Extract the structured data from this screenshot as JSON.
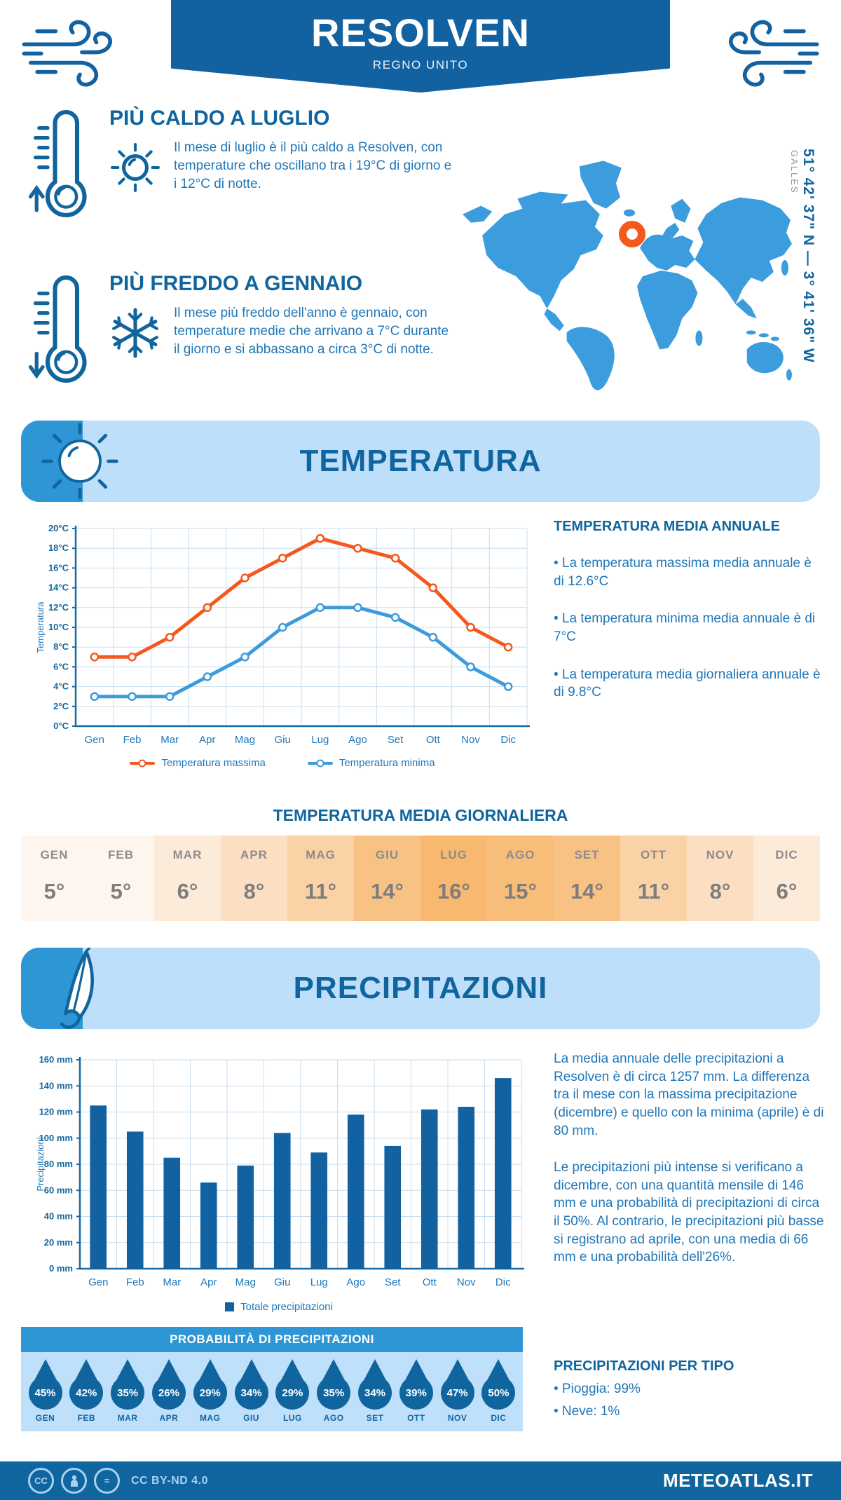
{
  "header": {
    "title": "RESOLVEN",
    "subtitle": "REGNO UNITO"
  },
  "highlights": {
    "warm": {
      "title": "PIÙ CALDO A LUGLIO",
      "text": "Il mese di luglio è il più caldo a Resolven, con temperature che oscillano tra i 19°C di giorno e i 12°C di notte."
    },
    "cold": {
      "title": "PIÙ FREDDO A GENNAIO",
      "text": "Il mese più freddo dell'anno è gennaio, con temperature medie che arrivano a 7°C durante il giorno e si abbassano a circa 3°C di notte."
    }
  },
  "map": {
    "coordinates": "51° 42' 37\" N — 3° 41' 36\" W",
    "region": "GALLES"
  },
  "temperature": {
    "banner": "TEMPERATURA",
    "annual_heading": "TEMPERATURA MEDIA ANNUALE",
    "annual_bullets": [
      "• La temperatura massima media annuale è di 12.6°C",
      "• La temperatura minima media annuale è di 7°C",
      "• La temperatura media giornaliera annuale è di 9.8°C"
    ],
    "daily_heading": "TEMPERATURA MEDIA GIORNALIERA",
    "daily": [
      {
        "label": "GEN",
        "value": "5°",
        "bg": "#FEF6EE"
      },
      {
        "label": "FEB",
        "value": "5°",
        "bg": "#FEF6EE"
      },
      {
        "label": "MAR",
        "value": "6°",
        "bg": "#FDEBD9"
      },
      {
        "label": "APR",
        "value": "8°",
        "bg": "#FCDFC2"
      },
      {
        "label": "MAG",
        "value": "11°",
        "bg": "#FBD2A5"
      },
      {
        "label": "GIU",
        "value": "14°",
        "bg": "#F9C285"
      },
      {
        "label": "LUG",
        "value": "16°",
        "bg": "#F8B86F"
      },
      {
        "label": "AGO",
        "value": "15°",
        "bg": "#F9BD7A"
      },
      {
        "label": "SET",
        "value": "14°",
        "bg": "#F9C285"
      },
      {
        "label": "OTT",
        "value": "11°",
        "bg": "#FBD2A5"
      },
      {
        "label": "NOV",
        "value": "8°",
        "bg": "#FCDFC2"
      },
      {
        "label": "DIC",
        "value": "6°",
        "bg": "#FDEBD9"
      }
    ]
  },
  "precipitation": {
    "banner": "PRECIPITAZIONI",
    "paragraph1": "La media annuale delle precipitazioni a Resolven è di circa 1257 mm. La differenza tra il mese con la massima precipitazione (dicembre) e quello con la minima (aprile) è di 80 mm.",
    "paragraph2": "Le precipitazioni più intense si verificano a dicembre, con una quantità mensile di 146 mm e una probabilità di precipitazioni di circa il 50%. Al contrario, le precipitazioni più basse si registrano ad aprile, con una media di 66 mm e una probabilità dell'26%.",
    "probability_heading": "PROBABILITÀ DI PRECIPITAZIONI",
    "probability": [
      {
        "month": "GEN",
        "value": "45%"
      },
      {
        "month": "FEB",
        "value": "42%"
      },
      {
        "month": "MAR",
        "value": "35%"
      },
      {
        "month": "APR",
        "value": "26%"
      },
      {
        "month": "MAG",
        "value": "29%"
      },
      {
        "month": "GIU",
        "value": "34%"
      },
      {
        "month": "LUG",
        "value": "29%"
      },
      {
        "month": "AGO",
        "value": "35%"
      },
      {
        "month": "SET",
        "value": "34%"
      },
      {
        "month": "OTT",
        "value": "39%"
      },
      {
        "month": "NOV",
        "value": "47%"
      },
      {
        "month": "DIC",
        "value": "50%"
      }
    ],
    "per_type_heading": "PRECIPITAZIONI PER TIPO",
    "per_type": [
      "• Pioggia: 99%",
      "• Neve: 1%"
    ]
  },
  "chart_data": [
    {
      "type": "line",
      "categories": [
        "Gen",
        "Feb",
        "Mar",
        "Apr",
        "Mag",
        "Giu",
        "Lug",
        "Ago",
        "Set",
        "Ott",
        "Nov",
        "Dic"
      ],
      "series": [
        {
          "name": "Temperatura massima",
          "color": "#F4581C",
          "values": [
            7,
            7,
            9,
            12,
            15,
            17,
            19,
            18,
            17,
            14,
            10,
            8
          ]
        },
        {
          "name": "Temperatura minima",
          "color": "#3D9BDC",
          "values": [
            3,
            3,
            3,
            5,
            7,
            10,
            12,
            12,
            11,
            9,
            6,
            4
          ]
        }
      ],
      "ylabel": "Temperatura",
      "ylim": [
        0,
        20
      ],
      "ytick_step": 2,
      "ytick_suffix": "°C",
      "grid": true,
      "legend_position": "bottom"
    },
    {
      "type": "bar",
      "categories": [
        "Gen",
        "Feb",
        "Mar",
        "Apr",
        "Mag",
        "Giu",
        "Lug",
        "Ago",
        "Set",
        "Ott",
        "Nov",
        "Dic"
      ],
      "series_name": "Totale precipitazioni",
      "color": "#1261A0",
      "values": [
        125,
        105,
        85,
        66,
        79,
        104,
        89,
        118,
        94,
        122,
        124,
        146
      ],
      "ylabel": "Precipitazioni",
      "ylim": [
        0,
        160
      ],
      "ytick_step": 20,
      "ytick_suffix": " mm",
      "grid": true,
      "legend_position": "bottom"
    }
  ],
  "footer": {
    "license": "CC BY-ND 4.0",
    "brand": "METEOATLAS.IT"
  }
}
